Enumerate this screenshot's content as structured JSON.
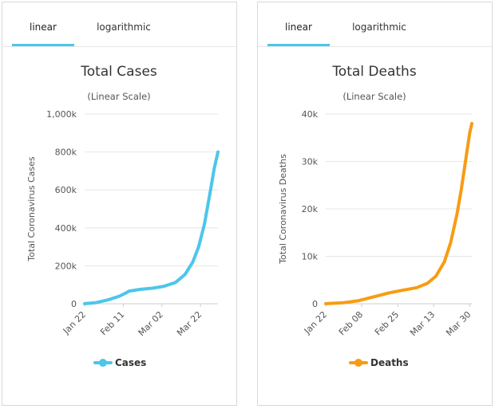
{
  "panels": [
    {
      "tabs": [
        {
          "label": "linear",
          "active": true
        },
        {
          "label": "logarithmic",
          "active": false
        }
      ]
    },
    {
      "tabs": [
        {
          "label": "linear",
          "active": true
        },
        {
          "label": "logarithmic",
          "active": false
        }
      ]
    }
  ],
  "colors": {
    "cases": "#4cc6ea",
    "deaths": "#f79c13",
    "tab_accent": "#4cc6ea",
    "grid": "#e6e6e6"
  },
  "chart_data": [
    {
      "type": "line",
      "title": "Total Cases",
      "subtitle": "(Linear Scale)",
      "ylabel": "Total Coronavirus Cases",
      "xlabel": "",
      "x_start": "Jan 22",
      "x_end": "Mar 31",
      "xticks": [
        "Jan 22",
        "Feb 11",
        "Mar 02",
        "Mar 22"
      ],
      "ylim": [
        0,
        1000000
      ],
      "yticks": [
        0,
        200000,
        400000,
        600000,
        800000,
        1000000
      ],
      "ytick_labels": [
        "0",
        "200k",
        "400k",
        "600k",
        "800k",
        "1,000k"
      ],
      "grid": true,
      "legend": "bottom",
      "series": [
        {
          "name": "Cases",
          "color": "#4cc6ea",
          "x": [
            "Jan 22",
            "Jan 28",
            "Feb 03",
            "Feb 09",
            "Feb 13",
            "Feb 14",
            "Feb 20",
            "Feb 26",
            "Mar 03",
            "Mar 09",
            "Mar 14",
            "Mar 18",
            "Mar 21",
            "Mar 24",
            "Mar 27",
            "Mar 29",
            "Mar 31"
          ],
          "values": [
            600,
            6000,
            20000,
            40000,
            60000,
            67000,
            76000,
            82000,
            92000,
            112000,
            155000,
            220000,
            300000,
            420000,
            590000,
            710000,
            800000
          ]
        }
      ]
    },
    {
      "type": "line",
      "title": "Total Deaths",
      "subtitle": "(Linear Scale)",
      "ylabel": "Total Coronavirus Deaths",
      "xlabel": "",
      "x_start": "Jan 22",
      "x_end": "Mar 31",
      "xticks": [
        "Jan 22",
        "Feb 08",
        "Feb 25",
        "Mar 13",
        "Mar 30"
      ],
      "ylim": [
        0,
        40000
      ],
      "yticks": [
        0,
        10000,
        20000,
        30000,
        40000
      ],
      "ytick_labels": [
        "0",
        "10k",
        "20k",
        "30k",
        "40k"
      ],
      "grid": true,
      "legend": "bottom",
      "series": [
        {
          "name": "Deaths",
          "color": "#f79c13",
          "x": [
            "Jan 22",
            "Jan 30",
            "Feb 06",
            "Feb 14",
            "Feb 21",
            "Feb 28",
            "Mar 05",
            "Mar 10",
            "Mar 14",
            "Mar 18",
            "Mar 21",
            "Mar 24",
            "Mar 26",
            "Mar 28",
            "Mar 30",
            "Mar 31"
          ],
          "values": [
            17,
            200,
            600,
            1500,
            2300,
            2900,
            3400,
            4300,
            5800,
            8800,
            12900,
            18900,
            24000,
            30000,
            36000,
            38000
          ]
        }
      ]
    }
  ]
}
